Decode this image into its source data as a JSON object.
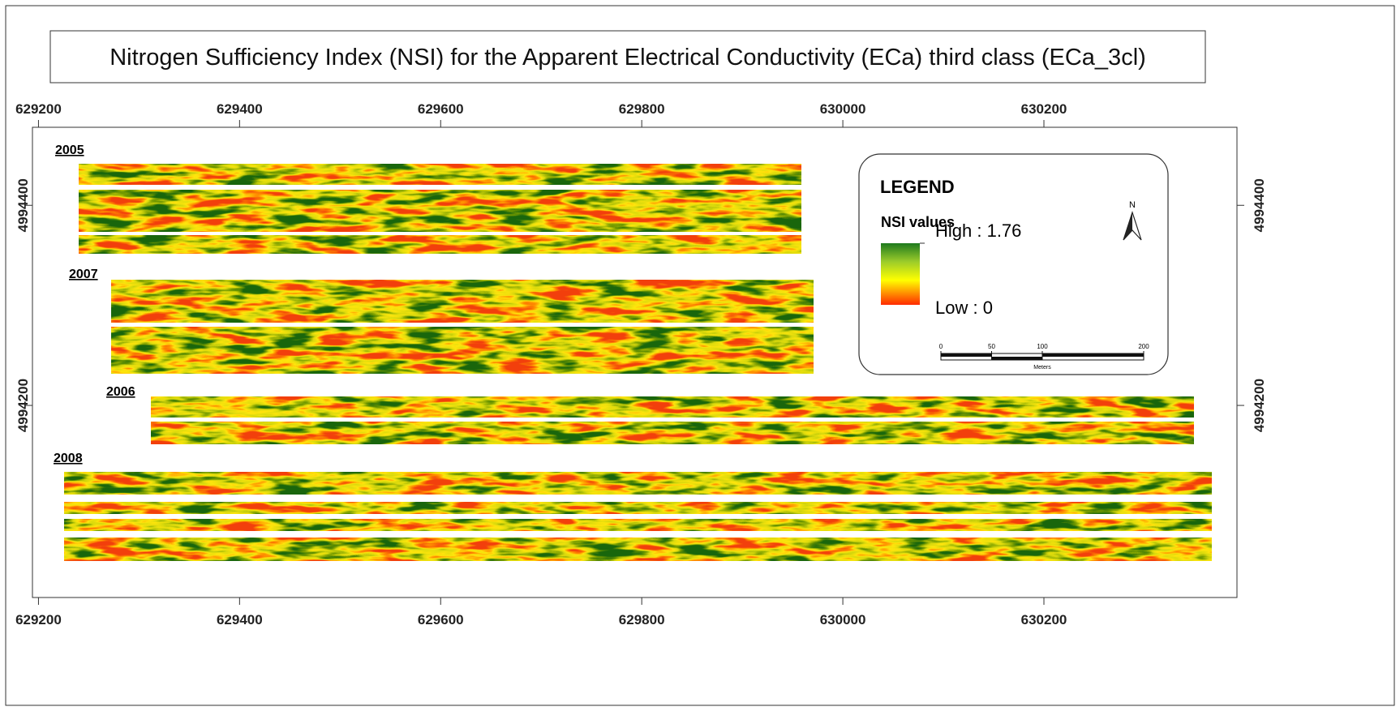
{
  "map": {
    "title": "Nitrogen Sufficiency Index (NSI) for the Apparent Electrical Conductivity (ECa) third class (ECa_3cl)",
    "xlim": [
      629194,
      630392
    ],
    "ylim": [
      4994008,
      4994478
    ],
    "xticks": [
      629200,
      629400,
      629600,
      629800,
      630000,
      630200
    ],
    "yticks": [
      4994200,
      4994400
    ],
    "fields": [
      {
        "label": "2005"
      },
      {
        "label": "2007"
      },
      {
        "label": "2006"
      },
      {
        "label": "2008"
      }
    ],
    "legend": {
      "title": "LEGEND",
      "subtitle": "NSI values",
      "high": "High : 1.76",
      "low": "Low :  0",
      "north": "N",
      "scale_ticks": [
        0,
        50,
        100,
        200
      ],
      "scale_unit": "Meters"
    }
  }
}
